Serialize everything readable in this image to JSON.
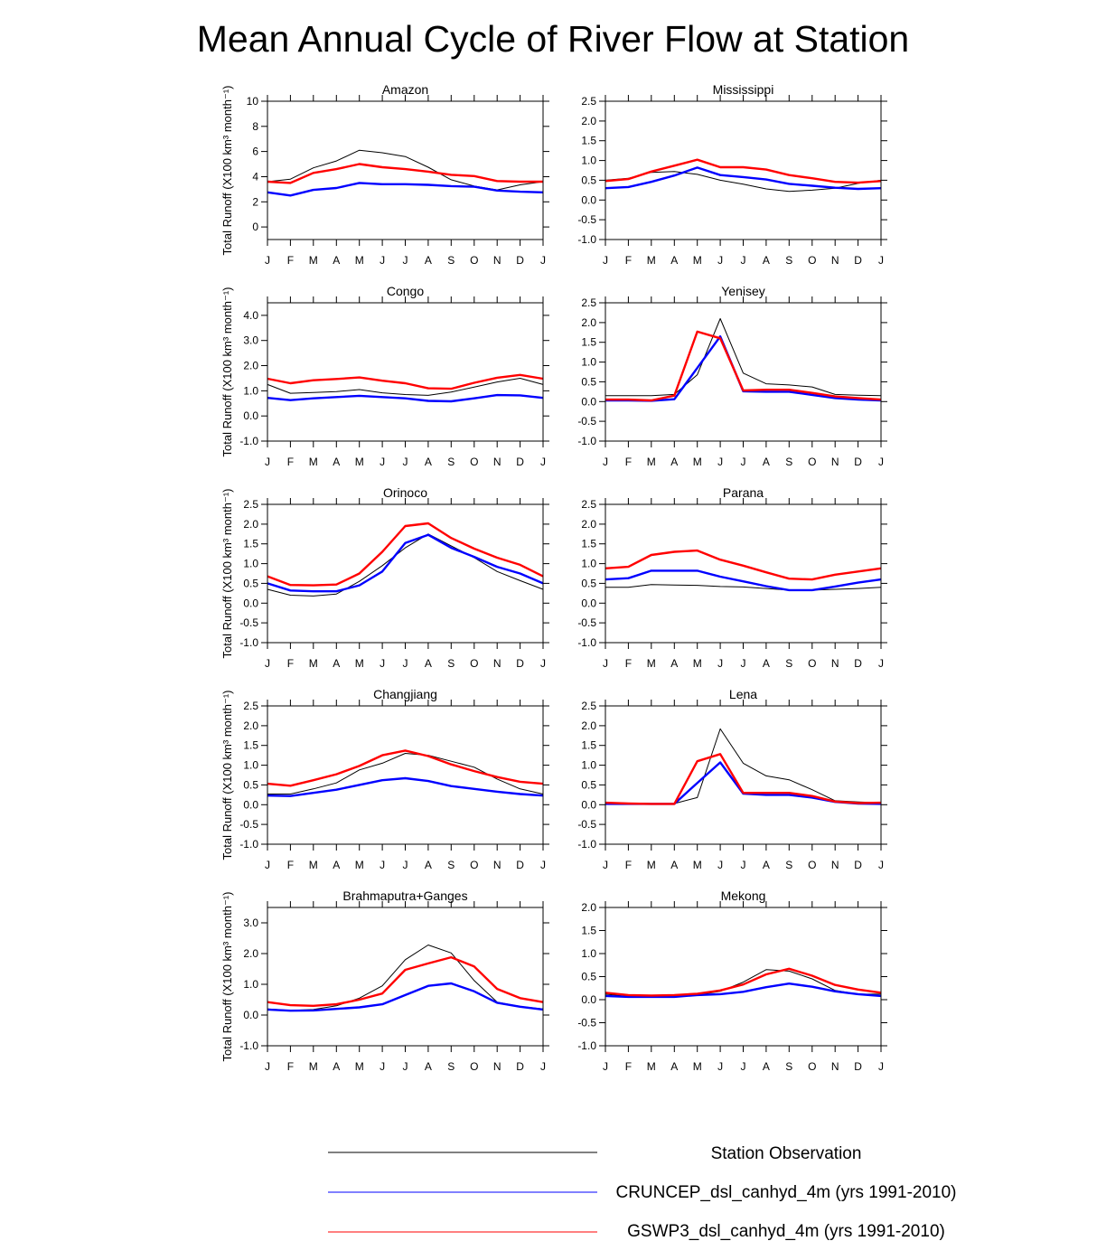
{
  "chart_data": {
    "type": "line",
    "title": "Mean Annual Cycle of River Flow at Station",
    "ylabel": "Total Runoff (X100 km³ month⁻¹)",
    "categories": [
      "J",
      "F",
      "M",
      "A",
      "M",
      "J",
      "J",
      "A",
      "S",
      "O",
      "N",
      "D",
      "J"
    ],
    "series": [
      {
        "name": "Station Observation",
        "color": "#000000"
      },
      {
        "name": "CRUNCEP_dsl_canhyd_4m (yrs 1991-2010)",
        "color": "#0000ff"
      },
      {
        "name": "GSWP3_dsl_canhyd_4m (yrs 1991-2010)",
        "color": "#ff0000"
      }
    ],
    "panels": [
      {
        "title": "Amazon",
        "ylim": [
          -1,
          10
        ],
        "yticks": [
          "10",
          "8",
          "6",
          "4",
          "2",
          "0"
        ],
        "values": [
          [
            3.6,
            3.8,
            4.7,
            5.25,
            6.1,
            5.9,
            5.6,
            4.75,
            3.75,
            3.25,
            2.95,
            3.35,
            3.6
          ],
          [
            2.75,
            2.5,
            2.95,
            3.1,
            3.5,
            3.4,
            3.4,
            3.35,
            3.25,
            3.2,
            2.9,
            2.8,
            2.75
          ],
          [
            3.6,
            3.5,
            4.3,
            4.6,
            5.0,
            4.75,
            4.6,
            4.4,
            4.15,
            4.05,
            3.65,
            3.6,
            3.6
          ]
        ]
      },
      {
        "title": "Mississippi",
        "ylim": [
          -1,
          2.5
        ],
        "yticks": [
          "2.5",
          "2.0",
          "1.5",
          "1.0",
          "0.5",
          "0.0",
          "-0.5",
          "-1.0"
        ],
        "values": [
          [
            0.5,
            0.55,
            0.7,
            0.72,
            0.65,
            0.5,
            0.4,
            0.28,
            0.22,
            0.25,
            0.3,
            0.42,
            0.5
          ],
          [
            0.3,
            0.33,
            0.46,
            0.62,
            0.82,
            0.63,
            0.58,
            0.52,
            0.41,
            0.36,
            0.31,
            0.28,
            0.3
          ],
          [
            0.48,
            0.53,
            0.72,
            0.87,
            1.02,
            0.83,
            0.83,
            0.77,
            0.63,
            0.55,
            0.46,
            0.44,
            0.48
          ]
        ]
      },
      {
        "title": "Congo",
        "ylim": [
          -1,
          4.5
        ],
        "yticks": [
          "4.0",
          "3.0",
          "2.0",
          "1.0",
          "0.0",
          "-1.0"
        ],
        "values": [
          [
            1.25,
            0.9,
            0.93,
            0.97,
            1.05,
            0.92,
            0.85,
            0.82,
            0.95,
            1.15,
            1.35,
            1.5,
            1.25
          ],
          [
            0.72,
            0.63,
            0.7,
            0.75,
            0.8,
            0.75,
            0.7,
            0.6,
            0.58,
            0.7,
            0.83,
            0.82,
            0.72
          ],
          [
            1.48,
            1.3,
            1.42,
            1.47,
            1.53,
            1.4,
            1.3,
            1.1,
            1.08,
            1.32,
            1.52,
            1.63,
            1.48
          ]
        ]
      },
      {
        "title": "Yenisey",
        "ylim": [
          -1,
          2.5
        ],
        "yticks": [
          "2.5",
          "2.0",
          "1.5",
          "1.0",
          "0.5",
          "0.0",
          "-0.5",
          "-1.0"
        ],
        "values": [
          [
            0.15,
            0.15,
            0.15,
            0.18,
            0.68,
            2.1,
            0.72,
            0.45,
            0.42,
            0.37,
            0.18,
            0.16,
            0.15
          ],
          [
            0.03,
            0.03,
            0.02,
            0.06,
            0.85,
            1.65,
            0.26,
            0.25,
            0.25,
            0.17,
            0.09,
            0.05,
            0.03
          ],
          [
            0.05,
            0.05,
            0.03,
            0.15,
            1.77,
            1.6,
            0.28,
            0.3,
            0.3,
            0.22,
            0.13,
            0.09,
            0.05
          ]
        ]
      },
      {
        "title": "Orinoco",
        "ylim": [
          -1,
          2.5
        ],
        "yticks": [
          "2.5",
          "2.0",
          "1.5",
          "1.0",
          "0.5",
          "0.0",
          "-0.5",
          "-1.0"
        ],
        "values": [
          [
            0.35,
            0.2,
            0.18,
            0.23,
            0.55,
            0.95,
            1.4,
            1.75,
            1.45,
            1.15,
            0.8,
            0.57,
            0.35
          ],
          [
            0.5,
            0.32,
            0.3,
            0.3,
            0.45,
            0.8,
            1.52,
            1.73,
            1.4,
            1.17,
            0.92,
            0.75,
            0.5
          ],
          [
            0.68,
            0.46,
            0.45,
            0.47,
            0.75,
            1.3,
            1.95,
            2.02,
            1.65,
            1.38,
            1.15,
            0.97,
            0.68
          ]
        ]
      },
      {
        "title": "Parana",
        "ylim": [
          -1,
          2.5
        ],
        "yticks": [
          "2.5",
          "2.0",
          "1.5",
          "1.0",
          "0.5",
          "0.0",
          "-0.5",
          "-1.0"
        ],
        "values": [
          [
            0.4,
            0.4,
            0.47,
            0.46,
            0.45,
            0.42,
            0.41,
            0.37,
            0.33,
            0.33,
            0.35,
            0.37,
            0.4
          ],
          [
            0.6,
            0.63,
            0.82,
            0.82,
            0.82,
            0.67,
            0.55,
            0.43,
            0.33,
            0.33,
            0.42,
            0.52,
            0.6
          ],
          [
            0.88,
            0.92,
            1.22,
            1.3,
            1.33,
            1.1,
            0.95,
            0.78,
            0.62,
            0.6,
            0.72,
            0.8,
            0.88
          ]
        ]
      },
      {
        "title": "Changjiang",
        "ylim": [
          -1,
          2.5
        ],
        "yticks": [
          "2.5",
          "2.0",
          "1.5",
          "1.0",
          "0.5",
          "0.0",
          "-0.5",
          "-1.0"
        ],
        "values": [
          [
            0.27,
            0.27,
            0.4,
            0.55,
            0.88,
            1.05,
            1.3,
            1.25,
            1.1,
            0.95,
            0.65,
            0.4,
            0.27
          ],
          [
            0.23,
            0.22,
            0.3,
            0.38,
            0.5,
            0.62,
            0.67,
            0.6,
            0.47,
            0.4,
            0.33,
            0.27,
            0.23
          ],
          [
            0.53,
            0.48,
            0.62,
            0.77,
            0.98,
            1.25,
            1.37,
            1.23,
            1.02,
            0.85,
            0.7,
            0.58,
            0.53
          ]
        ]
      },
      {
        "title": "Lena",
        "ylim": [
          -1,
          2.5
        ],
        "yticks": [
          "2.5",
          "2.0",
          "1.5",
          "1.0",
          "0.5",
          "0.0",
          "-0.5",
          "-1.0"
        ],
        "values": [
          [
            0.05,
            0.04,
            0.03,
            0.03,
            0.18,
            1.92,
            1.05,
            0.73,
            0.63,
            0.38,
            0.1,
            0.07,
            0.05
          ],
          [
            0.02,
            0.02,
            0.02,
            0.02,
            0.55,
            1.07,
            0.28,
            0.25,
            0.25,
            0.18,
            0.07,
            0.03,
            0.02
          ],
          [
            0.05,
            0.03,
            0.02,
            0.02,
            1.1,
            1.28,
            0.3,
            0.3,
            0.3,
            0.22,
            0.08,
            0.04,
            0.05
          ]
        ]
      },
      {
        "title": "Brahmaputra+Ganges",
        "ylim": [
          -1,
          3.5
        ],
        "yticks": [
          "3.0",
          "2.0",
          "1.0",
          "0.0",
          "-1.0"
        ],
        "values": [
          [
            0.2,
            0.15,
            0.18,
            0.3,
            0.55,
            0.95,
            1.8,
            2.28,
            2.02,
            1.12,
            0.42,
            0.28,
            0.2
          ],
          [
            0.18,
            0.14,
            0.15,
            0.2,
            0.25,
            0.35,
            0.65,
            0.95,
            1.03,
            0.77,
            0.4,
            0.27,
            0.18
          ],
          [
            0.42,
            0.32,
            0.3,
            0.35,
            0.5,
            0.7,
            1.47,
            1.68,
            1.88,
            1.58,
            0.85,
            0.55,
            0.42
          ]
        ]
      },
      {
        "title": "Mekong",
        "ylim": [
          -1,
          2.0
        ],
        "yticks": [
          "2.0",
          "1.5",
          "1.0",
          "0.5",
          "0.0",
          "-0.5",
          "-1.0"
        ],
        "values": [
          [
            0.12,
            0.07,
            0.08,
            0.08,
            0.1,
            0.18,
            0.38,
            0.65,
            0.62,
            0.45,
            0.2,
            0.12,
            0.12
          ],
          [
            0.08,
            0.06,
            0.06,
            0.06,
            0.1,
            0.12,
            0.17,
            0.27,
            0.35,
            0.28,
            0.18,
            0.12,
            0.08
          ],
          [
            0.15,
            0.1,
            0.09,
            0.1,
            0.13,
            0.2,
            0.33,
            0.55,
            0.67,
            0.52,
            0.32,
            0.22,
            0.15
          ]
        ]
      }
    ]
  }
}
